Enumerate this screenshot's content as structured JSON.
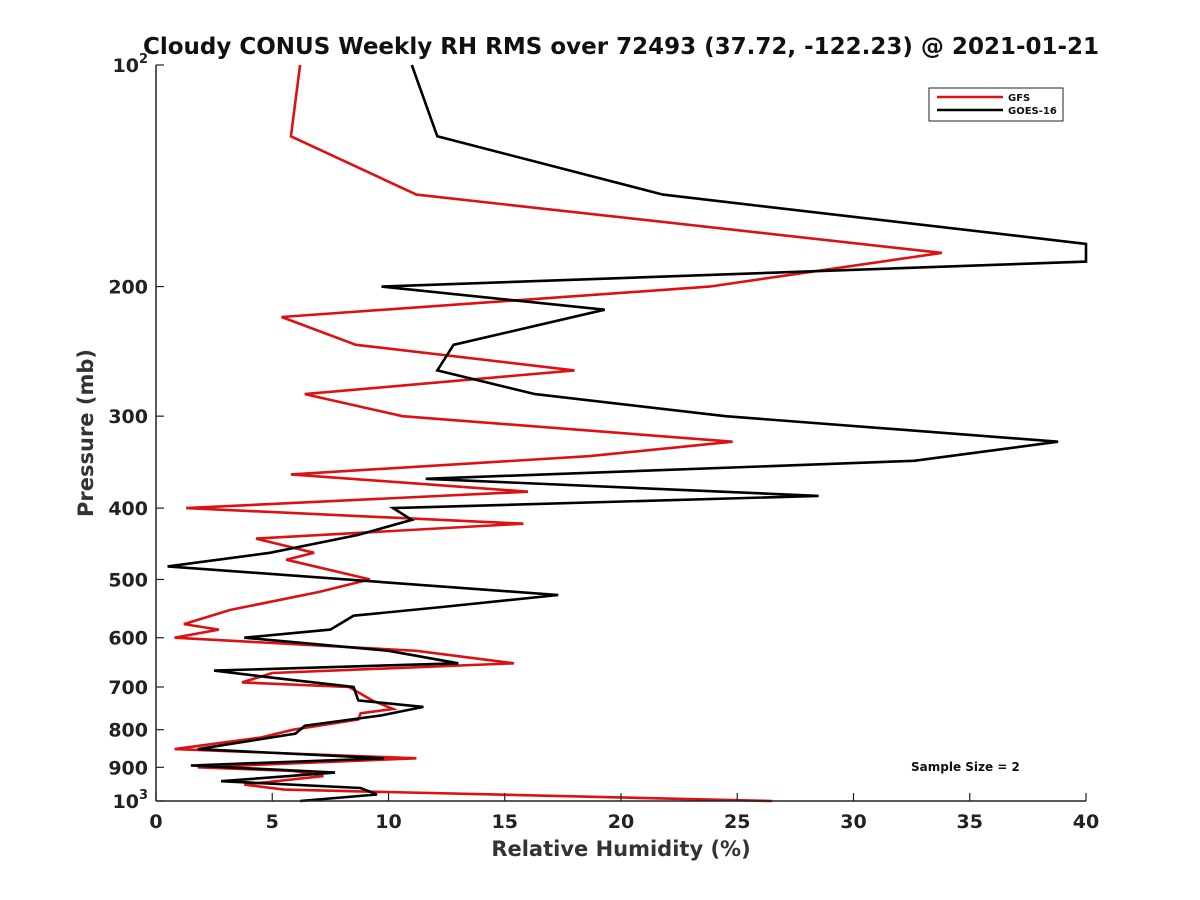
{
  "chart_data": {
    "type": "line",
    "title": "Cloudy CONUS Weekly RH RMS over 72493 (37.72, -122.23) @ 2021-01-21",
    "xlabel": "Relative Humidity (%)",
    "ylabel": "Pressure (mb)",
    "xlim": [
      0,
      40
    ],
    "ylim": [
      100,
      1000
    ],
    "y_scale": "log",
    "y_reversed": true,
    "grid": false,
    "legend_position": "top-right",
    "annotation": "Sample Size = 2",
    "x_ticks": [
      {
        "value": 0,
        "label": "0"
      },
      {
        "value": 5,
        "label": "5"
      },
      {
        "value": 10,
        "label": "10"
      },
      {
        "value": 15,
        "label": "15"
      },
      {
        "value": 20,
        "label": "20"
      },
      {
        "value": 25,
        "label": "25"
      },
      {
        "value": 30,
        "label": "30"
      },
      {
        "value": 35,
        "label": "35"
      },
      {
        "value": 40,
        "label": "40"
      }
    ],
    "y_ticks": [
      {
        "value": 100,
        "base": "10",
        "exp": "2"
      },
      {
        "value": 200,
        "base": "200",
        "exp": ""
      },
      {
        "value": 300,
        "base": "300",
        "exp": ""
      },
      {
        "value": 400,
        "base": "400",
        "exp": ""
      },
      {
        "value": 500,
        "base": "500",
        "exp": ""
      },
      {
        "value": 600,
        "base": "600",
        "exp": ""
      },
      {
        "value": 700,
        "base": "700",
        "exp": ""
      },
      {
        "value": 800,
        "base": "800",
        "exp": ""
      },
      {
        "value": 900,
        "base": "900",
        "exp": ""
      },
      {
        "value": 1000,
        "base": "10",
        "exp": "3"
      }
    ],
    "series": [
      {
        "name": "GFS",
        "color": "#dd1111",
        "points": [
          [
            6.2,
            100
          ],
          [
            5.8,
            125
          ],
          [
            11.2,
            150
          ],
          [
            33.8,
            180
          ],
          [
            23.8,
            200
          ],
          [
            5.4,
            220
          ],
          [
            8.6,
            240
          ],
          [
            18.0,
            260
          ],
          [
            6.4,
            280
          ],
          [
            10.6,
            300
          ],
          [
            24.8,
            325
          ],
          [
            18.6,
            340
          ],
          [
            5.8,
            360
          ],
          [
            16.0,
            380
          ],
          [
            1.3,
            400
          ],
          [
            15.8,
            420
          ],
          [
            4.3,
            440
          ],
          [
            6.8,
            460
          ],
          [
            5.6,
            470
          ],
          [
            9.2,
            500
          ],
          [
            7.0,
            520
          ],
          [
            3.2,
            550
          ],
          [
            1.2,
            575
          ],
          [
            2.7,
            585
          ],
          [
            0.8,
            600
          ],
          [
            11.2,
            625
          ],
          [
            15.4,
            650
          ],
          [
            5.0,
            670
          ],
          [
            3.7,
            690
          ],
          [
            8.3,
            700
          ],
          [
            9.3,
            730
          ],
          [
            10.2,
            750
          ],
          [
            8.8,
            760
          ],
          [
            8.7,
            775
          ],
          [
            5.9,
            800
          ],
          [
            4.5,
            820
          ],
          [
            0.8,
            850
          ],
          [
            11.2,
            875
          ],
          [
            1.8,
            900
          ],
          [
            5.9,
            910
          ],
          [
            7.2,
            925
          ],
          [
            3.8,
            950
          ],
          [
            5.5,
            965
          ],
          [
            26.5,
            1000
          ]
        ]
      },
      {
        "name": "GOES-16",
        "color": "#000000",
        "points": [
          [
            11.0,
            100
          ],
          [
            12.1,
            125
          ],
          [
            21.8,
            150
          ],
          [
            40.0,
            175
          ],
          [
            40.0,
            185
          ],
          [
            9.7,
            200
          ],
          [
            19.3,
            215
          ],
          [
            12.8,
            240
          ],
          [
            12.1,
            260
          ],
          [
            16.3,
            280
          ],
          [
            24.5,
            300
          ],
          [
            38.8,
            325
          ],
          [
            32.6,
            345
          ],
          [
            11.6,
            365
          ],
          [
            28.5,
            385
          ],
          [
            10.2,
            400
          ],
          [
            11.0,
            415
          ],
          [
            8.7,
            435
          ],
          [
            4.9,
            460
          ],
          [
            0.5,
            480
          ],
          [
            17.3,
            525
          ],
          [
            12.3,
            545
          ],
          [
            8.5,
            560
          ],
          [
            7.5,
            585
          ],
          [
            3.8,
            600
          ],
          [
            10.0,
            625
          ],
          [
            13.0,
            650
          ],
          [
            2.5,
            665
          ],
          [
            5.0,
            680
          ],
          [
            8.5,
            700
          ],
          [
            8.7,
            730
          ],
          [
            11.5,
            745
          ],
          [
            9.7,
            765
          ],
          [
            6.4,
            790
          ],
          [
            6.0,
            810
          ],
          [
            1.8,
            850
          ],
          [
            9.8,
            875
          ],
          [
            1.5,
            895
          ],
          [
            7.7,
            915
          ],
          [
            2.8,
            940
          ],
          [
            8.8,
            960
          ],
          [
            9.5,
            980
          ],
          [
            6.2,
            1000
          ]
        ]
      }
    ]
  }
}
